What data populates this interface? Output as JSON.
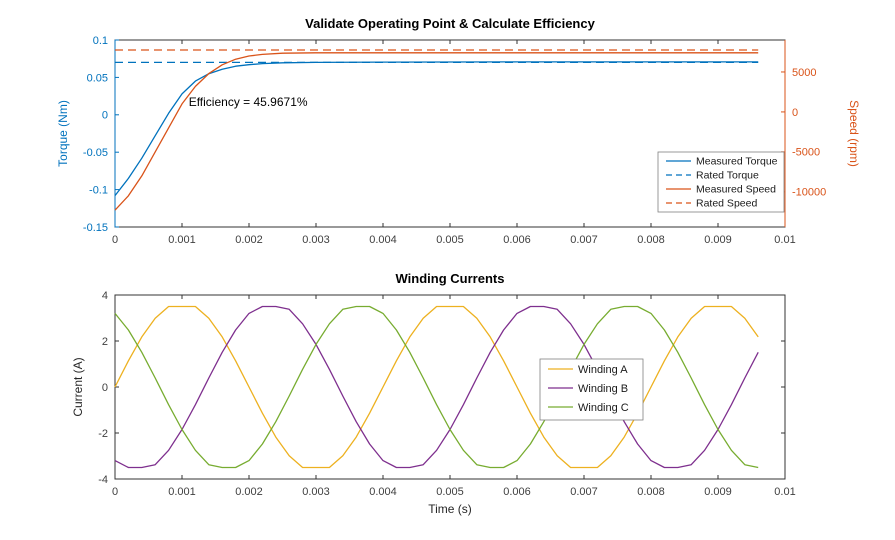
{
  "window": {
    "background": "#ffffff"
  },
  "palette": {
    "blue": "#0072BD",
    "orange": "#D95319",
    "yellow": "#EDB120",
    "purple": "#7E2F8E",
    "green": "#77AC30",
    "axis": "#333333"
  },
  "chart_data": [
    {
      "type": "line",
      "title": "Validate Operating Point & Calculate Efficiency",
      "xlim": [
        0,
        0.01
      ],
      "x_ticks": [
        0,
        0.001,
        0.002,
        0.003,
        0.004,
        0.005,
        0.006,
        0.007,
        0.008,
        0.009,
        0.01
      ],
      "x_tick_labels": [
        "0",
        "0.001",
        "0.002",
        "0.003",
        "0.004",
        "0.005",
        "0.006",
        "0.007",
        "0.008",
        "0.009",
        "0.01"
      ],
      "grid": false,
      "left_axis": {
        "label": "Torque (Nm)",
        "color": "#0072BD",
        "ylim": [
          -0.15,
          0.1
        ],
        "ticks": [
          -0.15,
          -0.1,
          -0.05,
          0,
          0.05,
          0.1
        ],
        "tick_labels": [
          "-0.15",
          "-0.1",
          "-0.05",
          "0",
          "0.05",
          "0.1"
        ]
      },
      "right_axis": {
        "label": "Speed (rpm)",
        "color": "#D95319",
        "ylim": [
          -14400,
          9000
        ],
        "ticks": [
          -10000,
          -5000,
          0,
          5000
        ],
        "tick_labels": [
          "-10000",
          "-5000",
          "0",
          "5000"
        ]
      },
      "annotation": {
        "text": "Efficiency = 45.9671%",
        "x": 0.0011,
        "y": 0.012
      },
      "legend": {
        "location": "southeast"
      },
      "series": [
        {
          "name": "Measured Torque",
          "axis": "left",
          "color": "#0072BD",
          "style": "solid",
          "x": [
            0,
            0.0002,
            0.0004,
            0.0006,
            0.0008,
            0.001,
            0.0012,
            0.0014,
            0.0016,
            0.0018,
            0.002,
            0.0022,
            0.0025,
            0.003,
            0.004,
            0.005,
            0.006,
            0.007,
            0.008,
            0.009,
            0.0096
          ],
          "y": [
            -0.108,
            -0.085,
            -0.058,
            -0.028,
            0.002,
            0.028,
            0.045,
            0.055,
            0.061,
            0.065,
            0.067,
            0.0685,
            0.0695,
            0.07,
            0.0705,
            0.0706,
            0.0707,
            0.0707,
            0.0707,
            0.0707,
            0.0707
          ]
        },
        {
          "name": "Rated Torque",
          "axis": "left",
          "color": "#0072BD",
          "style": "dashed",
          "x": [
            0,
            0.0096
          ],
          "y": [
            0.07,
            0.07
          ]
        },
        {
          "name": "Measured Speed",
          "axis": "right",
          "color": "#D95319",
          "style": "solid",
          "x": [
            0,
            0.0002,
            0.0004,
            0.0006,
            0.0008,
            0.001,
            0.0012,
            0.0014,
            0.0016,
            0.0018,
            0.002,
            0.0022,
            0.0025,
            0.003,
            0.004,
            0.005,
            0.006,
            0.007,
            0.008,
            0.009,
            0.0096
          ],
          "y": [
            -12300,
            -10500,
            -8000,
            -5000,
            -2000,
            1000,
            3200,
            4800,
            5900,
            6600,
            7000,
            7200,
            7350,
            7400,
            7400,
            7400,
            7400,
            7400,
            7400,
            7400,
            7400
          ]
        },
        {
          "name": "Rated Speed",
          "axis": "right",
          "color": "#D95319",
          "style": "dashed",
          "x": [
            0,
            0.0096
          ],
          "y": [
            7750,
            7750
          ]
        }
      ]
    },
    {
      "type": "line",
      "title": "Winding Currents",
      "xlabel": "Time (s)",
      "xlim": [
        0,
        0.01
      ],
      "x_ticks": [
        0,
        0.001,
        0.002,
        0.003,
        0.004,
        0.005,
        0.006,
        0.007,
        0.008,
        0.009,
        0.01
      ],
      "x_tick_labels": [
        "0",
        "0.001",
        "0.002",
        "0.003",
        "0.004",
        "0.005",
        "0.006",
        "0.007",
        "0.008",
        "0.009",
        "0.01"
      ],
      "grid": false,
      "left_axis": {
        "label": "Current (A)",
        "color": "#262626",
        "ylim": [
          -4,
          4
        ],
        "ticks": [
          -4,
          -2,
          0,
          2,
          4
        ],
        "tick_labels": [
          "-4",
          "-2",
          "0",
          "2",
          "4"
        ]
      },
      "legend": {
        "location": "east"
      },
      "x": [
        0,
        0.0002,
        0.0004,
        0.0006,
        0.0008,
        0.001,
        0.0012,
        0.0014,
        0.0016,
        0.0018,
        0.002,
        0.0022,
        0.0024,
        0.0026,
        0.0028,
        0.003,
        0.0032,
        0.0034,
        0.0036,
        0.0038,
        0.004,
        0.0042,
        0.0044,
        0.0046,
        0.0048,
        0.005,
        0.0052,
        0.0054,
        0.0056,
        0.0058,
        0.006,
        0.0062,
        0.0064,
        0.0066,
        0.0068,
        0.007,
        0.0072,
        0.0074,
        0.0076,
        0.0078,
        0.008,
        0.0082,
        0.0084,
        0.0086,
        0.0088,
        0.009,
        0.0092,
        0.0094,
        0.0096
      ],
      "series": [
        {
          "name": "Winding A",
          "axis": "left",
          "color": "#EDB120",
          "style": "solid",
          "y": [
            0,
            1.14,
            2.18,
            2.99,
            3.5,
            3.5,
            3.5,
            2.99,
            2.18,
            1.14,
            0,
            -1.14,
            -2.18,
            -2.99,
            -3.5,
            -3.5,
            -3.5,
            -2.99,
            -2.18,
            -1.14,
            0,
            1.14,
            2.18,
            2.99,
            3.5,
            3.5,
            3.5,
            2.99,
            2.18,
            1.14,
            0,
            -1.14,
            -2.18,
            -2.99,
            -3.5,
            -3.5,
            -3.5,
            -2.99,
            -2.18,
            -1.14,
            0,
            1.14,
            2.18,
            2.99,
            3.5,
            3.5,
            3.5,
            2.99,
            2.18
          ]
        },
        {
          "name": "Winding B",
          "axis": "left",
          "color": "#7E2F8E",
          "style": "solid",
          "y": [
            -3.2,
            -3.5,
            -3.5,
            -3.38,
            -2.75,
            -1.85,
            -0.77,
            0.39,
            1.51,
            2.48,
            3.2,
            3.5,
            3.5,
            3.38,
            2.75,
            1.85,
            0.77,
            -0.39,
            -1.51,
            -2.48,
            -3.2,
            -3.5,
            -3.5,
            -3.38,
            -2.75,
            -1.85,
            -0.77,
            0.39,
            1.51,
            2.48,
            3.2,
            3.5,
            3.5,
            3.38,
            2.75,
            1.85,
            0.77,
            -0.39,
            -1.51,
            -2.48,
            -3.2,
            -3.5,
            -3.5,
            -3.38,
            -2.75,
            -1.85,
            -0.77,
            0.39,
            1.51
          ]
        },
        {
          "name": "Winding C",
          "axis": "left",
          "color": "#77AC30",
          "style": "solid",
          "y": [
            3.2,
            2.48,
            1.51,
            0.39,
            -0.77,
            -1.85,
            -2.75,
            -3.38,
            -3.5,
            -3.5,
            -3.2,
            -2.48,
            -1.51,
            -0.39,
            0.77,
            1.85,
            2.75,
            3.38,
            3.5,
            3.5,
            3.2,
            2.48,
            1.51,
            0.39,
            -0.77,
            -1.85,
            -2.75,
            -3.38,
            -3.5,
            -3.5,
            -3.2,
            -2.48,
            -1.51,
            -0.39,
            0.77,
            1.85,
            2.75,
            3.38,
            3.5,
            3.5,
            3.2,
            2.48,
            1.51,
            0.39,
            -0.77,
            -1.85,
            -2.75,
            -3.38,
            -3.5
          ]
        }
      ]
    }
  ]
}
